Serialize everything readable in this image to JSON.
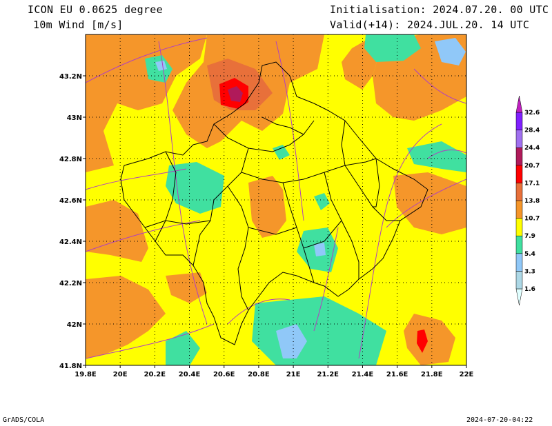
{
  "header": {
    "model": "ICON EU 0.0625 degree",
    "variable": "10m Wind [m/s]",
    "init": "Initialisation: 2024.07.20. 00 UTC",
    "valid": "Valid(+14): 2024.JUL.20. 14 UTC"
  },
  "footer": {
    "left": "GrADS/COLA",
    "right": "2024-07-20-04:22"
  },
  "map": {
    "lon_range": [
      19.8,
      22.0
    ],
    "lat_range": [
      41.8,
      43.4
    ],
    "x_ticks": [
      "19.8E",
      "20E",
      "20.2E",
      "20.4E",
      "20.6E",
      "20.8E",
      "21E",
      "21.2E",
      "21.4E",
      "21.6E",
      "21.8E",
      "22E"
    ],
    "y_ticks": [
      "41.8N",
      "42N",
      "42.2N",
      "42.4N",
      "42.6N",
      "42.8N",
      "43N",
      "43.2N"
    ],
    "grid": "dotted"
  },
  "colorbar": {
    "levels": [
      "1.6",
      "3.3",
      "5.4",
      "7.9",
      "10.7",
      "13.8",
      "17.1",
      "20.7",
      "24.4",
      "28.4",
      "32.6"
    ],
    "colors": [
      "#e0ffff",
      "#add8e6",
      "#90c8f8",
      "#40e0a0",
      "#ffff00",
      "#f5962a",
      "#e8703a",
      "#ff0000",
      "#b01a5a",
      "#a070f0",
      "#8020ff",
      "#c020c0"
    ]
  }
}
